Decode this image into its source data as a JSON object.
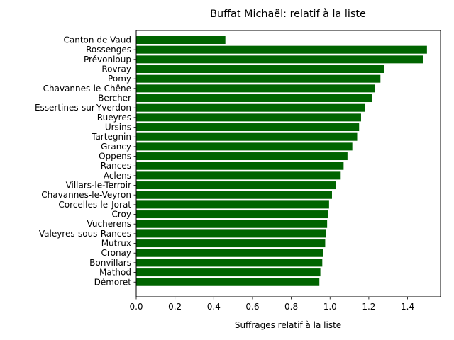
{
  "chart_data": {
    "type": "bar",
    "orientation": "horizontal",
    "title": "Buffat Michaël: relatif à la liste",
    "xlabel": "Suffrages relatif à la liste",
    "ylabel": "",
    "xlim": [
      0,
      1.57
    ],
    "xticks": [
      "0.0",
      "0.2",
      "0.4",
      "0.6",
      "0.8",
      "1.0",
      "1.2",
      "1.4"
    ],
    "grid": false,
    "bar_color": "#006400",
    "categories": [
      "Canton de Vaud",
      "Rossenges",
      "Prévonloup",
      "Rovray",
      "Pomy",
      "Chavannes-le-Chêne",
      "Bercher",
      "Essertines-sur-Yverdon",
      "Rueyres",
      "Ursins",
      "Tartegnin",
      "Grancy",
      "Oppens",
      "Rances",
      "Aclens",
      "Villars-le-Terroir",
      "Chavannes-le-Veyron",
      "Corcelles-le-Jorat",
      "Croy",
      "Vucherens",
      "Valeyres-sous-Rances",
      "Mutrux",
      "Cronay",
      "Bonvillars",
      "Mathod",
      "Démoret"
    ],
    "values": [
      0.46,
      1.5,
      1.48,
      1.28,
      1.26,
      1.23,
      1.215,
      1.18,
      1.16,
      1.15,
      1.14,
      1.115,
      1.09,
      1.07,
      1.055,
      1.03,
      1.01,
      0.995,
      0.99,
      0.985,
      0.98,
      0.975,
      0.965,
      0.96,
      0.95,
      0.945
    ]
  }
}
